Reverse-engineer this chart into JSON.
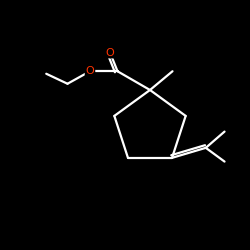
{
  "background_color": "#000000",
  "fig_bg": "#000000",
  "bond_color": "#ffffff",
  "oxygen_color": "#ff3300",
  "lw": 1.6,
  "atoms": {
    "O1_label": "O",
    "O2_label": "O"
  },
  "xlim": [
    0,
    10
  ],
  "ylim": [
    0,
    10
  ]
}
